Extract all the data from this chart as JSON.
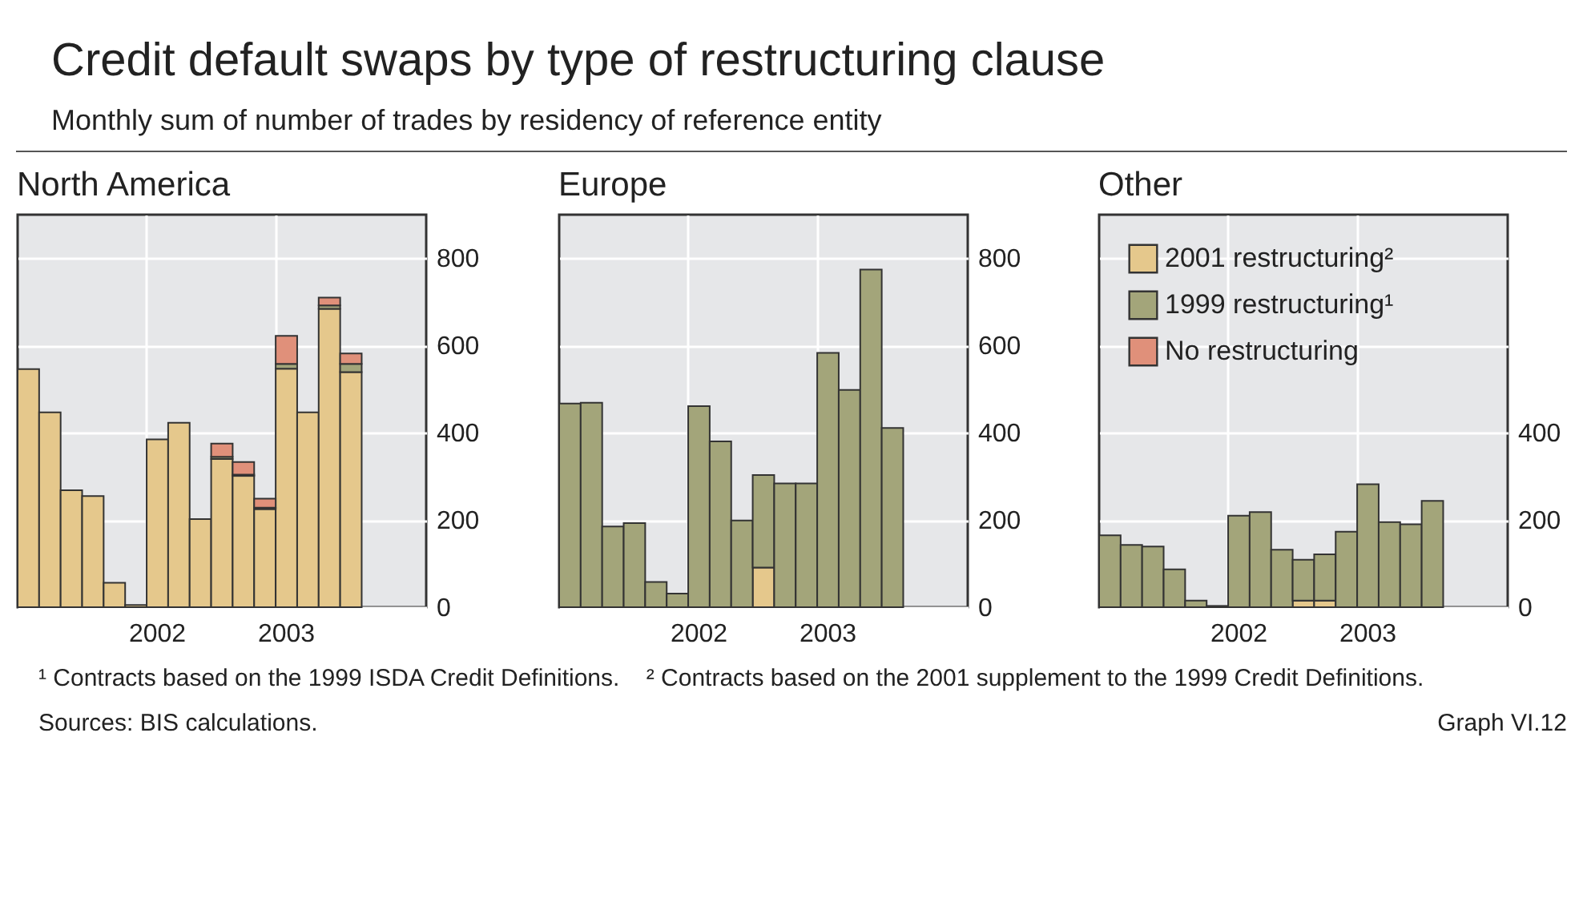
{
  "chart_data": [
    {
      "type": "other",
      "title": "Credit default swaps by type of restructuring clause",
      "subtitle": "Monthly sum of number of trades by residency of reference entity"
    },
    {
      "type": "bar",
      "title": "North America",
      "stacked": true,
      "grid": true,
      "categories": [
        null,
        null,
        null,
        null,
        null,
        null,
        "2002",
        null,
        null,
        null,
        null,
        null,
        "2003",
        null,
        null,
        null,
        null,
        null,
        null
      ],
      "ylim": [
        0,
        900
      ],
      "yticks": [
        0,
        200,
        400,
        600,
        800
      ],
      "series": [
        {
          "color": "#e5c88c",
          "values": [
            546,
            447,
            268,
            255,
            56,
            5,
            385,
            423,
            202,
            340,
            301,
            225,
            547,
            447,
            684,
            539,
            null,
            null,
            null
          ]
        },
        {
          "color": "#a3a57a",
          "values": [
            null,
            null,
            null,
            null,
            null,
            null,
            null,
            null,
            null,
            5,
            3,
            3,
            11,
            null,
            8,
            19,
            null,
            null,
            null
          ]
        },
        {
          "color": "#e0907a",
          "values": [
            null,
            null,
            null,
            null,
            null,
            null,
            null,
            null,
            null,
            30,
            29,
            21,
            64,
            null,
            18,
            24,
            null,
            null,
            null
          ]
        }
      ]
    },
    {
      "type": "bar",
      "title": "Europe",
      "stacked": true,
      "grid": true,
      "categories": [
        null,
        null,
        null,
        null,
        null,
        null,
        "2002",
        null,
        null,
        null,
        null,
        null,
        "2003",
        null,
        null,
        null,
        null,
        null,
        null
      ],
      "ylim": [
        0,
        900
      ],
      "yticks": [
        0,
        200,
        400,
        600,
        800
      ],
      "series": [
        {
          "color": "#e5c88c",
          "values": [
            null,
            null,
            null,
            null,
            null,
            null,
            null,
            null,
            null,
            91,
            null,
            null,
            null,
            null,
            null,
            null,
            null,
            null,
            null
          ]
        },
        {
          "color": "#a3a57a",
          "values": [
            467,
            469,
            185,
            193,
            58,
            31,
            461,
            380,
            199,
            212,
            284,
            284,
            583,
            498,
            774,
            411,
            null,
            null,
            null
          ]
        }
      ]
    },
    {
      "type": "bar",
      "title": "Other",
      "stacked": true,
      "grid": true,
      "legend": "top left",
      "categories": [
        null,
        null,
        null,
        null,
        null,
        null,
        "2002",
        null,
        null,
        null,
        null,
        null,
        "2003",
        null,
        null,
        null,
        null,
        null,
        null
      ],
      "ylim": [
        0,
        900
      ],
      "yticks": [
        0,
        200,
        400,
        {
          "value": 600,
          "label": null
        },
        {
          "value": 800,
          "label": null
        }
      ],
      "series": [
        {
          "name": "2001 restructuring²",
          "color": "#e5c88c",
          "values": [
            null,
            null,
            null,
            null,
            null,
            null,
            null,
            null,
            null,
            15,
            15,
            null,
            null,
            null,
            null,
            null,
            null,
            null,
            null
          ]
        },
        {
          "name": "1999 restructuring¹",
          "color": "#a3a57a",
          "values": [
            165,
            143,
            139,
            87,
            15,
            3,
            210,
            218,
            132,
            94,
            106,
            173,
            282,
            195,
            190,
            244,
            null,
            null,
            null
          ]
        },
        {
          "name": "No restructuring",
          "color": "#e0907a",
          "values": [
            null,
            null,
            null,
            null,
            null,
            null,
            null,
            null,
            null,
            null,
            null,
            null,
            null,
            null,
            null,
            null,
            null,
            null,
            null
          ]
        }
      ]
    },
    {
      "type": "other",
      "annotations": [
        "¹ Contracts based on the 1999 ISDA Credit Definitions.",
        "² Contracts based on the 2001 supplement to the 1999 Credit Definitions.",
        "Sources: BIS calculations.",
        "Graph VI.12"
      ]
    }
  ]
}
